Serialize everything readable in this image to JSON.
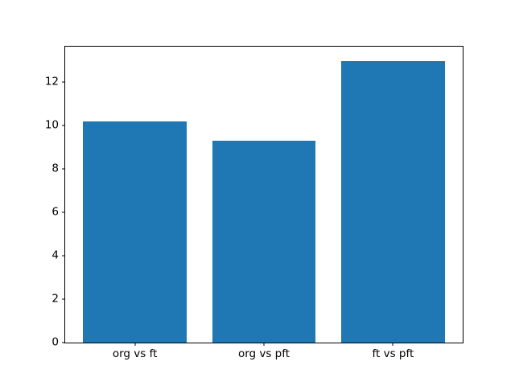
{
  "figure": {
    "background": "#ffffff"
  },
  "chart_data": {
    "type": "bar",
    "title": "",
    "xlabel": "",
    "ylabel": "",
    "categories": [
      "org vs ft",
      "org vs pft",
      "ft vs pft"
    ],
    "values": [
      10.2,
      9.3,
      13.0
    ],
    "yticks": [
      0,
      2,
      4,
      6,
      8,
      10,
      12
    ],
    "ylim": [
      0,
      13.65
    ],
    "xlim": [
      -0.54,
      2.54
    ],
    "bar_width_data_units": 0.8,
    "bar_color": "#1f77b4",
    "axis_color": "#000000",
    "tick_label_color": "#000000",
    "grid": false,
    "legend": null
  }
}
